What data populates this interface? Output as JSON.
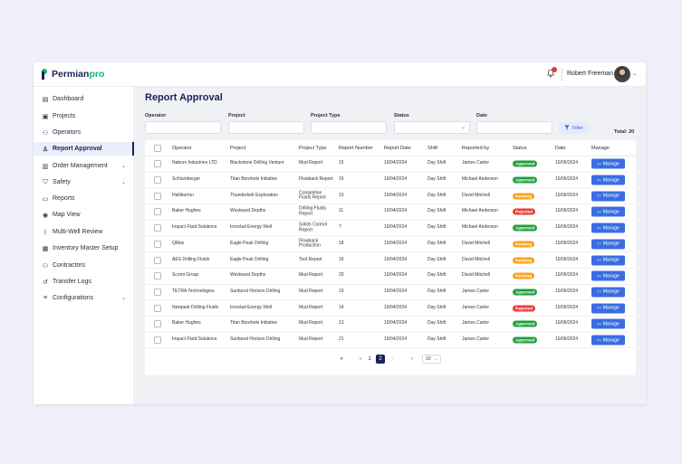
{
  "brand": {
    "name_a": "Permian",
    "name_b": "pro"
  },
  "header": {
    "user_name": "Robert Freeman"
  },
  "sidebar": {
    "items": [
      {
        "label": "Dashboard",
        "icon": "chart-icon"
      },
      {
        "label": "Projects",
        "icon": "clipboard-icon"
      },
      {
        "label": "Operators",
        "icon": "users-icon"
      },
      {
        "label": "Report Approval",
        "icon": "user-check-icon",
        "active": true
      },
      {
        "label": "Order Management",
        "icon": "order-icon",
        "chevron": true
      },
      {
        "label": "Safety",
        "icon": "shield-icon",
        "chevron": true
      },
      {
        "label": "Reports",
        "icon": "document-icon"
      },
      {
        "label": "Map View",
        "icon": "globe-icon"
      },
      {
        "label": "Multi-Well Review",
        "icon": "chart-line-icon"
      },
      {
        "label": "Inventory Master Setup",
        "icon": "inventory-icon"
      },
      {
        "label": "Contractors",
        "icon": "contractors-icon"
      },
      {
        "label": "Transfer Logs",
        "icon": "history-icon"
      },
      {
        "label": "Configurations",
        "icon": "sliders-icon",
        "chevron": true
      }
    ]
  },
  "page": {
    "title": "Report Approval"
  },
  "filters": {
    "operator_label": "Operator",
    "project_label": "Project",
    "project_type_label": "Project Type",
    "status_label": "Status",
    "date_label": "Date",
    "filter_button": "Filter",
    "total": "Total: 20"
  },
  "table": {
    "headers": [
      "Operator",
      "Project",
      "Project Type",
      "Report Number",
      "Report Date",
      "Shift",
      "Reported by",
      "Status",
      "Date",
      "Manage"
    ],
    "manage_label": "Manage",
    "rows": [
      {
        "operator": "Nabors Industries LTD",
        "project": "Blackstone Drilling Venture",
        "type": "Mud Report",
        "number": "15",
        "report_date": "10/04/2024",
        "shift": "Day Shift",
        "by": "James Carter",
        "status": "Approved",
        "date": "10/06/2024"
      },
      {
        "operator": "Schlumberger",
        "project": "Titan Borehole Initiative",
        "type": "Flowback Report",
        "number": "16",
        "report_date": "10/04/2024",
        "shift": "Day Shift",
        "by": "Michael Anderson",
        "status": "Approved",
        "date": "10/06/2024"
      },
      {
        "operator": "Halliburton",
        "project": "Thunderbolt Exploration",
        "type": "Completion Fluids Report",
        "number": "10",
        "report_date": "10/04/2024",
        "shift": "Day Shift",
        "by": "David Mitchell",
        "status": "Pending",
        "date": "10/06/2024"
      },
      {
        "operator": "Baker Hughes",
        "project": "Westward Depths",
        "type": "Drilling Fluids Report",
        "number": "11",
        "report_date": "10/04/2024",
        "shift": "Day Shift",
        "by": "Michael Anderson",
        "status": "Rejected",
        "date": "10/06/2024"
      },
      {
        "operator": "Impact Fluid Solutions",
        "project": "Ironclad Energy Well",
        "type": "Solids Control Report",
        "number": "7",
        "report_date": "10/04/2024",
        "shift": "Day Shift",
        "by": "Michael Anderson",
        "status": "Approved",
        "date": "10/06/2024"
      },
      {
        "operator": "QMax",
        "project": "Eagle Peak Drilling",
        "type": "Flowback Production",
        "number": "18",
        "report_date": "10/04/2024",
        "shift": "Day Shift",
        "by": "David Mitchell",
        "status": "Pending",
        "date": "10/06/2024"
      },
      {
        "operator": "AES Drilling Fluids",
        "project": "Eagle Peak Drilling",
        "type": "Tool Report",
        "number": "16",
        "report_date": "10/04/2024",
        "shift": "Day Shift",
        "by": "David Mitchell",
        "status": "Pending",
        "date": "10/06/2024"
      },
      {
        "operator": "Scomi Group",
        "project": "Westward Depths",
        "type": "Mud Report",
        "number": "20",
        "report_date": "10/04/2024",
        "shift": "Day Shift",
        "by": "David Mitchell",
        "status": "Pending",
        "date": "10/06/2024"
      },
      {
        "operator": "TETRA Technologies",
        "project": "Sunburst Horizon Drilling",
        "type": "Mud Report",
        "number": "19",
        "report_date": "10/04/2024",
        "shift": "Day Shift",
        "by": "James Carter",
        "status": "Approved",
        "date": "10/06/2024"
      },
      {
        "operator": "Newpark Drilling Fluids",
        "project": "Ironclad Energy Well",
        "type": "Mud Report",
        "number": "14",
        "report_date": "10/04/2024",
        "shift": "Day Shift",
        "by": "James Carter",
        "status": "Rejected",
        "date": "10/06/2024"
      },
      {
        "operator": "Baker Hughes",
        "project": "Titan Borehole Initiative",
        "type": "Mud Report",
        "number": "13",
        "report_date": "10/04/2024",
        "shift": "Day Shift",
        "by": "James Carter",
        "status": "Approved",
        "date": "10/06/2024"
      },
      {
        "operator": "Impact Fluid Solutions",
        "project": "Sunburst Horizon Drilling",
        "type": "Mud Report",
        "number": "21",
        "report_date": "10/04/2024",
        "shift": "Day Shift",
        "by": "James Carter",
        "status": "Approved",
        "date": "10/06/2024"
      }
    ]
  },
  "status_colors": {
    "Approved": "#1e9e3a",
    "Pending": "#f5a11a",
    "Rejected": "#e53935"
  },
  "pagination": {
    "first": "«",
    "prev": "‹",
    "page1": "1",
    "page2": "2",
    "next": "›",
    "last": "»",
    "page_size": "10"
  }
}
